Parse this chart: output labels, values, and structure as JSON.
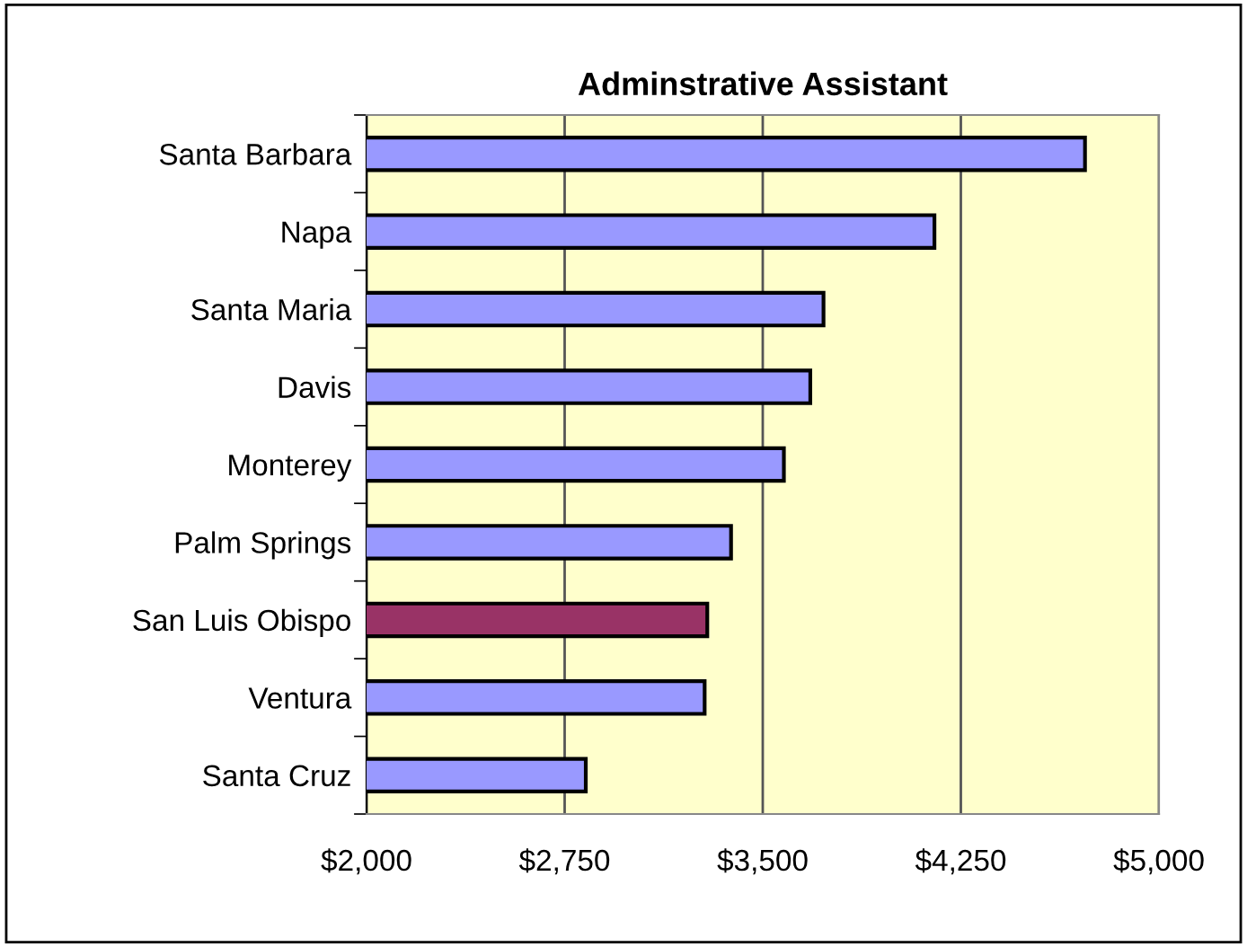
{
  "chart_data": {
    "type": "bar",
    "orientation": "horizontal",
    "title": "Adminstrative Assistant",
    "categories": [
      "Santa Barbara",
      "Napa",
      "Santa Maria",
      "Davis",
      "Monterey",
      "Palm Springs",
      "San Luis Obispo",
      "Ventura",
      "Santa Cruz"
    ],
    "values": [
      4720,
      4150,
      3730,
      3680,
      3580,
      3380,
      3290,
      3280,
      2830
    ],
    "colors": [
      "#9999ff",
      "#9999ff",
      "#9999ff",
      "#9999ff",
      "#9999ff",
      "#9999ff",
      "#993366",
      "#9999ff",
      "#9999ff"
    ],
    "xlim": [
      2000,
      5000
    ],
    "xticks": [
      {
        "value": 2000,
        "label": "$2,000"
      },
      {
        "value": 2750,
        "label": "$2,750"
      },
      {
        "value": 3500,
        "label": "$3,500"
      },
      {
        "value": 4250,
        "label": "$4,250"
      },
      {
        "value": 5000,
        "label": "$5,000"
      }
    ],
    "grid": "x"
  }
}
